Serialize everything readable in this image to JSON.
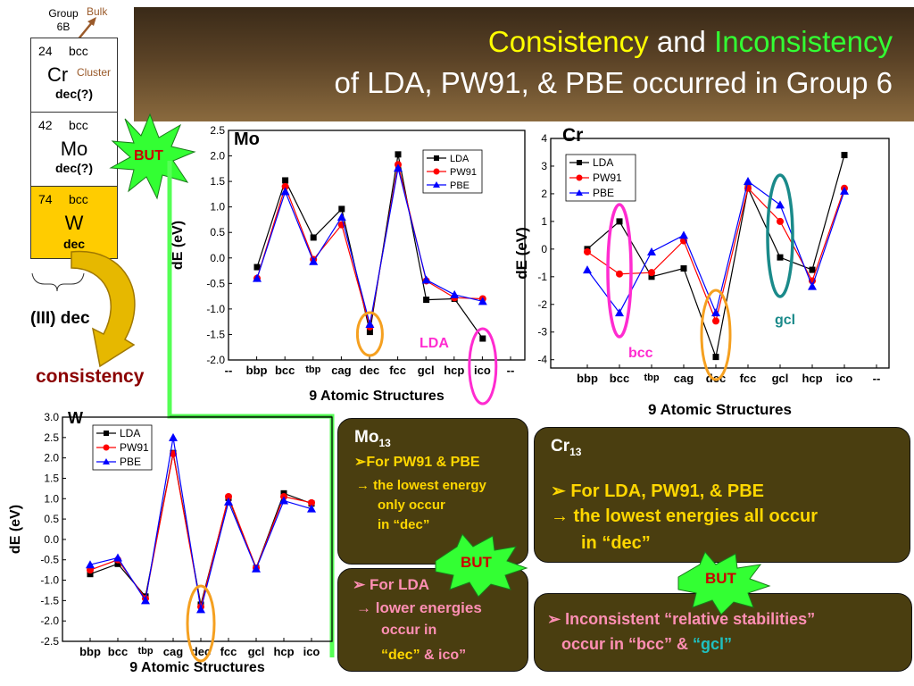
{
  "title": {
    "word1": "Consistency",
    "and": " and ",
    "word2": "Inconsistency",
    "line2": "of LDA, PW91, & PBE occurred in Group 6"
  },
  "periodic": {
    "group_label_1": "Group",
    "group_label_2": "6B",
    "bulk_label": "Bulk",
    "cluster_label": "Cluster",
    "elements": [
      {
        "number": "24",
        "lattice": "bcc",
        "symbol": "Cr",
        "lowest": "dec(?)"
      },
      {
        "number": "42",
        "lattice": "bcc",
        "symbol": "Mo",
        "lowest": "dec(?)"
      },
      {
        "number": "74",
        "lattice": "bcc",
        "symbol": "W",
        "lowest": "dec"
      }
    ],
    "iii_label": "(III) dec",
    "consistency_label": "consistency",
    "but_label": "BUT"
  },
  "colors": {
    "LDA": "#000000",
    "PW91": "#ff0000",
    "PBE": "#0000ff",
    "highlight_orange": "#f5a020",
    "highlight_pink": "#ff2bd0",
    "highlight_teal": "#1a8a8a",
    "green_connector": "#33ff33"
  },
  "chart_data": [
    {
      "panel": "Mo",
      "type": "line",
      "categories": [
        "bbp",
        "bcc",
        "tbp",
        "cag",
        "dec",
        "fcc",
        "gcl",
        "hcp",
        "ico"
      ],
      "xticks": [
        "--",
        "bbp",
        "bcc",
        "tbp",
        "cag",
        "dec",
        "fcc",
        "gcl",
        "hcp",
        "ico",
        "--"
      ],
      "yticks": [
        "2.5",
        "2.0",
        "1.5",
        "1.0",
        "0.5",
        "0.0",
        "-0.5",
        "-1.0",
        "-1.5",
        "-2.0"
      ],
      "ylim": [
        -2.0,
        2.5
      ],
      "xlabel": "9 Atomic Structures",
      "ylabel": "dE (eV)",
      "series": [
        {
          "name": "LDA",
          "values": [
            -0.18,
            1.52,
            0.4,
            0.96,
            -1.45,
            2.03,
            -0.82,
            -0.8,
            -1.58
          ]
        },
        {
          "name": "PW91",
          "values": [
            -0.4,
            1.4,
            -0.03,
            0.65,
            -1.35,
            1.83,
            -0.45,
            -0.78,
            -0.8
          ]
        },
        {
          "name": "PBE",
          "values": [
            -0.4,
            1.3,
            -0.07,
            0.8,
            -1.3,
            1.76,
            -0.43,
            -0.72,
            -0.85
          ]
        }
      ],
      "annotation": "LDA"
    },
    {
      "panel": "Cr",
      "type": "line",
      "categories": [
        "bbp",
        "bcc",
        "tbp",
        "cag",
        "dec",
        "fcc",
        "gcl",
        "hcp",
        "ico"
      ],
      "xticks": [
        "bbp",
        "bcc",
        "tbp",
        "cag",
        "dec",
        "fcc",
        "gcl",
        "hcp",
        "ico",
        "--"
      ],
      "yticks": [
        "4",
        "3",
        "2",
        "1",
        "0",
        "-1",
        "-2",
        "-3",
        "-4"
      ],
      "ylim": [
        -4.3,
        4
      ],
      "xlabel": "9 Atomic Structures",
      "ylabel": "dE (eV)",
      "series": [
        {
          "name": "LDA",
          "values": [
            0.0,
            1.0,
            -1.0,
            -0.7,
            -3.9,
            2.2,
            -0.3,
            -0.75,
            3.4
          ]
        },
        {
          "name": "PW91",
          "values": [
            -0.1,
            -0.9,
            -0.85,
            0.3,
            -2.6,
            2.2,
            1.0,
            -1.15,
            2.2
          ]
        },
        {
          "name": "PBE",
          "values": [
            -0.75,
            -2.3,
            -0.1,
            0.5,
            -2.3,
            2.45,
            1.6,
            -1.35,
            2.1
          ]
        }
      ],
      "annotations": [
        "bcc",
        "gcl"
      ]
    },
    {
      "panel": "W",
      "type": "line",
      "categories": [
        "bbp",
        "bcc",
        "tbp",
        "cag",
        "dec",
        "fcc",
        "gcl",
        "hcp",
        "ico"
      ],
      "xticks": [
        "bbp",
        "bcc",
        "tbp",
        "cag",
        "dec",
        "fcc",
        "gcl",
        "hcp",
        "ico"
      ],
      "yticks": [
        "3.0",
        "2.5",
        "2.0",
        "1.5",
        "1.0",
        "0.5",
        "0.0",
        "-0.5",
        "-1.0",
        "-1.5",
        "-2.0",
        "-2.5"
      ],
      "ylim": [
        -2.5,
        3.0
      ],
      "xlabel": "9 Atomic Structures",
      "ylabel": "dE (eV)",
      "series": [
        {
          "name": "LDA",
          "values": [
            -0.85,
            -0.6,
            -1.4,
            2.12,
            -1.6,
            1.02,
            -0.7,
            1.13,
            0.88
          ]
        },
        {
          "name": "PW91",
          "values": [
            -0.75,
            -0.5,
            -1.45,
            2.1,
            -1.65,
            1.05,
            -0.7,
            1.05,
            0.9
          ]
        },
        {
          "name": "PBE",
          "values": [
            -0.62,
            -0.45,
            -1.5,
            2.5,
            -1.72,
            0.92,
            -0.72,
            0.95,
            0.75
          ]
        }
      ]
    }
  ],
  "boxes": {
    "mo13": {
      "title": "Mo",
      "sub": "13",
      "l1": "➢For PW91 & PBE",
      "l2": "→ the lowest energy",
      "l3": "only occur",
      "l4": "in “dec”"
    },
    "cr13": {
      "title": "Cr",
      "sub": "13",
      "l1": "➢  For LDA, PW91, & PBE",
      "l2": "→ the lowest energies all occur",
      "l3": "in “dec”"
    },
    "lda": {
      "l1": "➢ For LDA",
      "l2": "→ lower energies",
      "l3": "occur in",
      "l4a": "“dec”",
      "l4b": " & ico”"
    },
    "incons": {
      "l1": "➢ Inconsistent “relative stabilities”",
      "l2a": "occur in “bcc” & ",
      "l2b": "“gcl”"
    }
  }
}
